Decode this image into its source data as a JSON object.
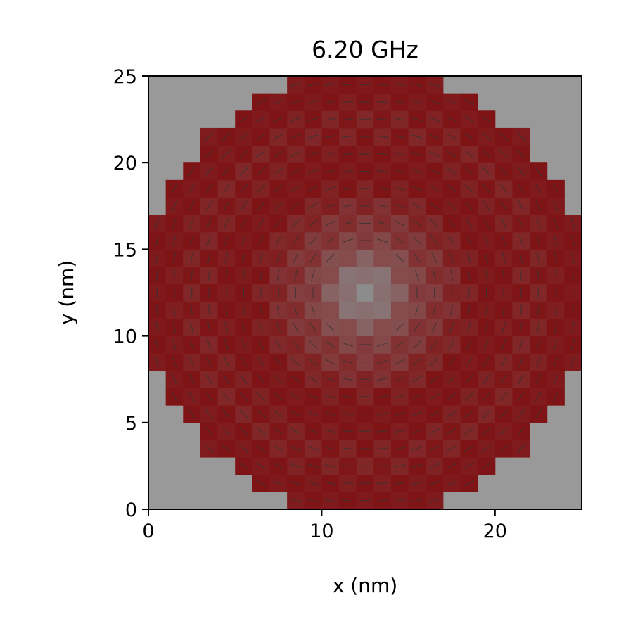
{
  "chart_data": {
    "type": "heatmap",
    "title": "6.20 GHz",
    "xlabel": "x (nm)",
    "ylabel": "y (nm)",
    "xlim": [
      0,
      25
    ],
    "ylim": [
      0,
      25
    ],
    "x_ticks": [
      0,
      10,
      20
    ],
    "y_ticks": [
      0,
      5,
      10,
      15,
      20,
      25
    ],
    "grid": false,
    "cell_size_nm": 1,
    "disk_center_nm": [
      12.5,
      12.5
    ],
    "disk_radius_nm": 12.8,
    "background_color": "#999999",
    "mode_color": "#7f1416",
    "core_color": "#8c8c8c",
    "arrow_color": "#333333",
    "mode_profile": "vortex core at center with checkerboard spin-wave pattern; in-plane magnetization arrows circulating around core"
  }
}
